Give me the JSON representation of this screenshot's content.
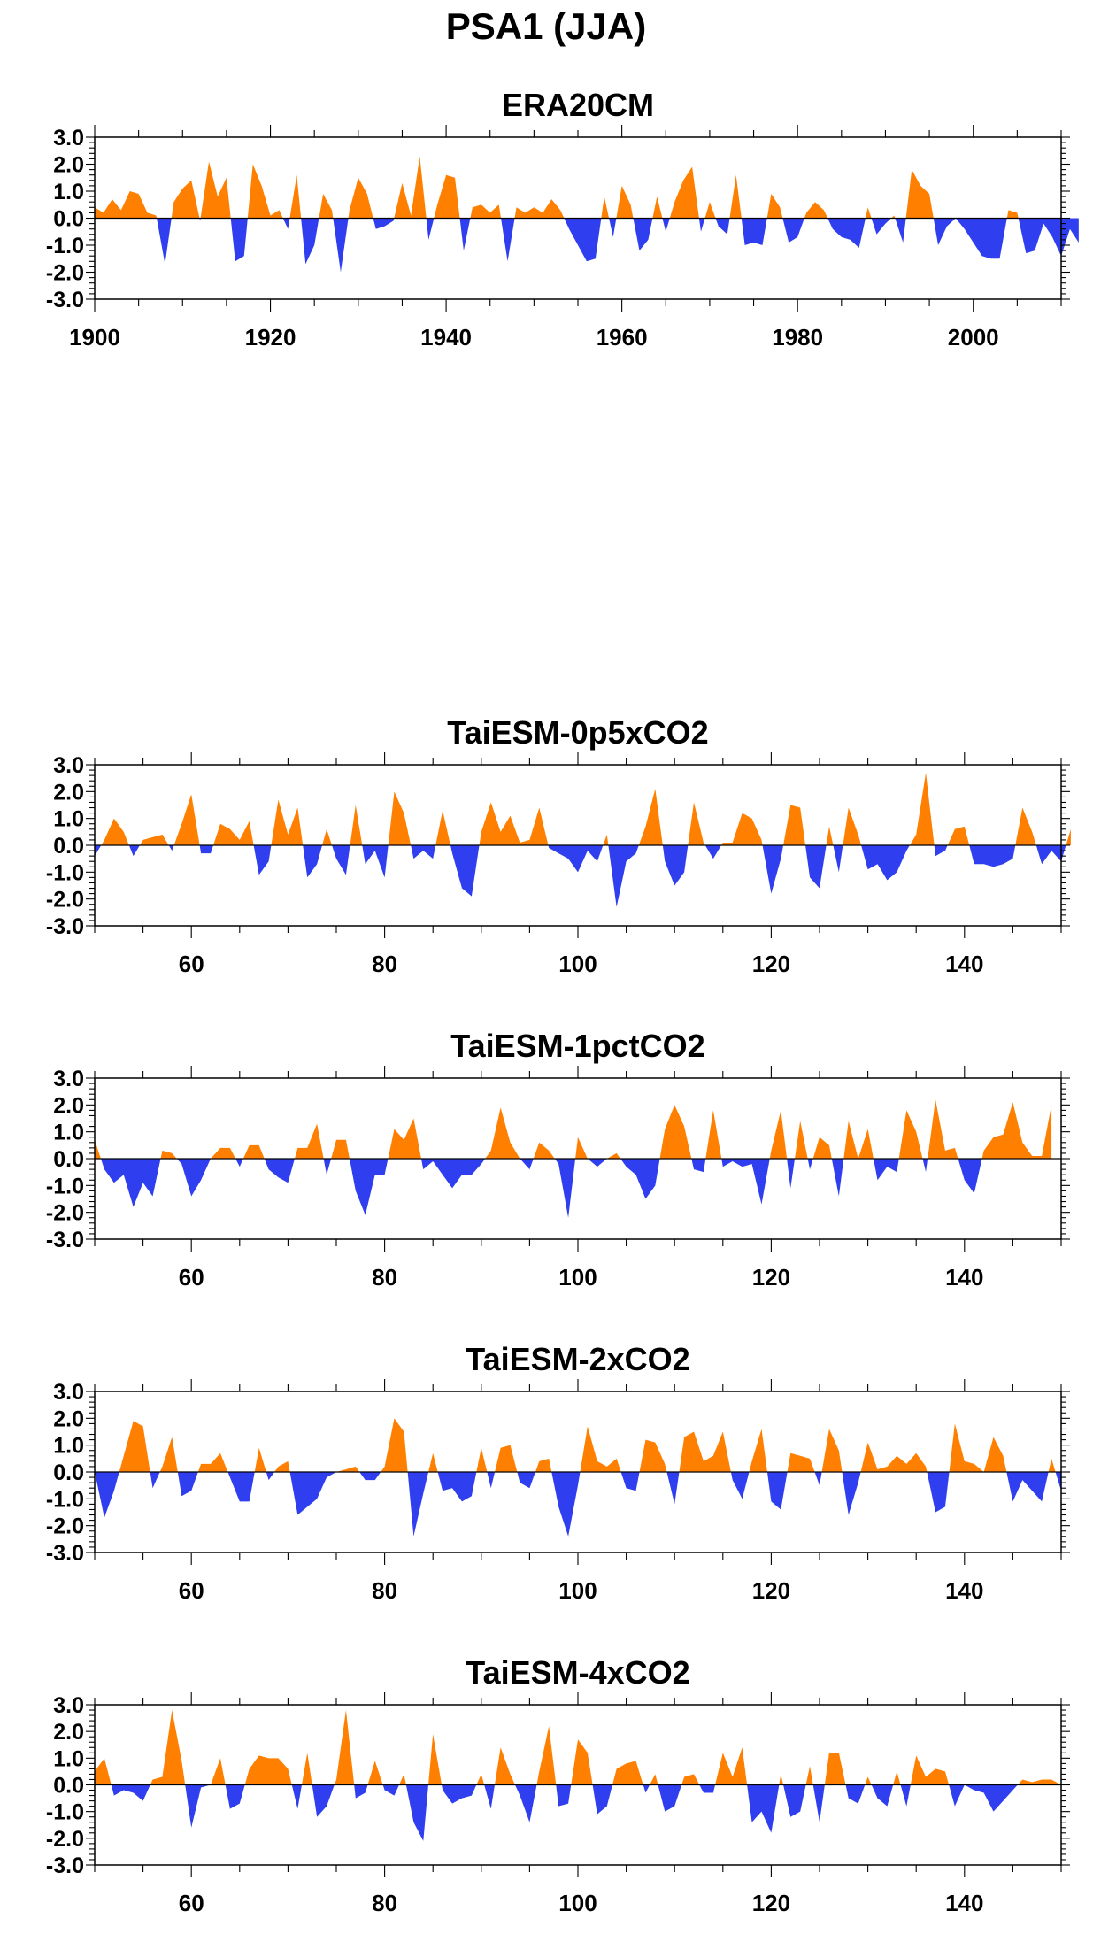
{
  "figure": {
    "title": "PSA1 (JJA)"
  },
  "colors": {
    "positive": "#ff8000",
    "negative": "#2f3ff0",
    "axis": "#000000"
  },
  "chart_data": [
    {
      "type": "area",
      "title": "ERA20CM",
      "xlabel": "",
      "ylabel": "",
      "xlim": [
        1900,
        2010
      ],
      "ylim": [
        -3,
        3
      ],
      "xticks": [
        1900,
        1920,
        1940,
        1960,
        1980,
        2000
      ],
      "yticks": [
        3,
        2,
        1,
        0,
        -1,
        -2,
        -3
      ],
      "ytick_labels": [
        "3.0",
        "2.0",
        "1.0",
        "0.0",
        "-1.0",
        "-2.0",
        "-3.0"
      ],
      "x_start": 1900,
      "values": [
        0.4,
        0.2,
        0.7,
        0.3,
        1.0,
        0.9,
        0.2,
        0.1,
        -1.7,
        0.6,
        1.1,
        1.4,
        -0.1,
        2.1,
        0.8,
        1.5,
        -1.6,
        -1.4,
        2.0,
        1.2,
        0.1,
        0.3,
        -0.4,
        1.6,
        -1.7,
        -1.0,
        0.9,
        0.3,
        -2.0,
        0.3,
        1.5,
        0.9,
        -0.4,
        -0.3,
        -0.1,
        1.3,
        0.1,
        2.3,
        -0.8,
        0.5,
        1.6,
        1.5,
        -1.2,
        0.4,
        0.5,
        0.2,
        0.5,
        -1.6,
        0.4,
        0.2,
        0.4,
        0.2,
        0.7,
        0.3,
        -0.4,
        -1.0,
        -1.6,
        -1.5,
        0.8,
        -0.7,
        1.2,
        0.5,
        -1.2,
        -0.8,
        0.8,
        -0.5,
        0.6,
        1.4,
        1.9,
        -0.5,
        0.6,
        -0.3,
        -0.6,
        1.6,
        -1.0,
        -0.9,
        -1.0,
        0.9,
        0.4,
        -0.9,
        -0.7,
        0.2,
        0.6,
        0.3,
        -0.4,
        -0.7,
        -0.8,
        -1.1,
        0.4,
        -0.6,
        -0.2,
        0.1,
        -0.9,
        1.8,
        1.2,
        0.9,
        -1.0,
        -0.3,
        0.0,
        -0.4,
        -0.9,
        -1.4,
        -1.5,
        -1.5,
        0.3,
        0.2,
        -1.3,
        -1.2,
        -0.2,
        -0.7,
        -1.4,
        -0.4,
        -0.9
      ]
    },
    {
      "type": "area",
      "title": "TaiESM-0p5xCO2",
      "xlabel": "",
      "ylabel": "",
      "xlim": [
        50,
        150
      ],
      "ylim": [
        -3,
        3
      ],
      "xticks": [
        60,
        80,
        100,
        120,
        140
      ],
      "yticks": [
        3,
        2,
        1,
        0,
        -1,
        -2,
        -3
      ],
      "ytick_labels": [
        "3.0",
        "2.0",
        "1.0",
        "0.0",
        "-1.0",
        "-2.0",
        "-3.0"
      ],
      "x_start": 50,
      "values": [
        -0.4,
        0.2,
        1.0,
        0.5,
        -0.4,
        0.2,
        0.3,
        0.4,
        -0.2,
        0.8,
        1.9,
        -0.3,
        -0.3,
        0.8,
        0.6,
        0.2,
        0.9,
        -1.1,
        -0.6,
        1.7,
        0.4,
        1.4,
        -1.2,
        -0.7,
        0.6,
        -0.5,
        -1.1,
        1.5,
        -0.7,
        -0.2,
        -1.2,
        2.0,
        1.2,
        -0.5,
        -0.2,
        -0.5,
        1.3,
        -0.3,
        -1.6,
        -1.9,
        0.5,
        1.6,
        0.5,
        1.1,
        0.1,
        0.2,
        1.4,
        -0.1,
        -0.3,
        -0.5,
        -1.0,
        -0.2,
        -0.6,
        0.4,
        -2.3,
        -0.6,
        -0.3,
        0.7,
        2.1,
        -0.6,
        -1.5,
        -1.0,
        1.6,
        0.1,
        -0.5,
        0.1,
        0.1,
        1.2,
        1.0,
        0.2,
        -1.8,
        -0.5,
        1.5,
        1.4,
        -1.2,
        -1.6,
        0.7,
        -1.0,
        1.4,
        0.4,
        -0.9,
        -0.7,
        -1.3,
        -1.0,
        -0.2,
        0.4,
        2.7,
        -0.4,
        -0.2,
        0.6,
        0.7,
        -0.7,
        -0.7,
        -0.8,
        -0.7,
        -0.5,
        1.4,
        0.5,
        -0.7,
        -0.2,
        -0.6,
        0.6
      ]
    },
    {
      "type": "area",
      "title": "TaiESM-1pctCO2",
      "xlabel": "",
      "ylabel": "",
      "xlim": [
        50,
        150
      ],
      "ylim": [
        -3,
        3
      ],
      "xticks": [
        60,
        80,
        100,
        120,
        140
      ],
      "yticks": [
        3,
        2,
        1,
        0,
        -1,
        -2,
        -3
      ],
      "ytick_labels": [
        "3.0",
        "2.0",
        "1.0",
        "0.0",
        "-1.0",
        "-2.0",
        "-3.0"
      ],
      "x_start": 50,
      "values": [
        0.7,
        -0.4,
        -0.9,
        -0.6,
        -1.8,
        -0.9,
        -1.4,
        0.3,
        0.2,
        -0.2,
        -1.4,
        -0.8,
        0.0,
        0.4,
        0.4,
        -0.3,
        0.5,
        0.5,
        -0.4,
        -0.7,
        -0.9,
        0.4,
        0.4,
        1.3,
        -0.6,
        0.7,
        0.7,
        -1.2,
        -2.1,
        -0.6,
        -0.6,
        1.1,
        0.7,
        1.5,
        -0.4,
        -0.1,
        -0.6,
        -1.1,
        -0.6,
        -0.6,
        -0.2,
        0.3,
        1.9,
        0.6,
        0.0,
        -0.4,
        0.6,
        0.3,
        -0.2,
        -2.2,
        0.8,
        0.0,
        -0.3,
        0.0,
        0.2,
        -0.3,
        -0.6,
        -1.5,
        -1.0,
        1.1,
        2.0,
        1.2,
        -0.4,
        -0.5,
        1.8,
        -0.3,
        -0.1,
        -0.3,
        -0.2,
        -1.7,
        0.3,
        1.8,
        -1.1,
        1.4,
        -0.4,
        0.8,
        0.5,
        -1.4,
        1.4,
        0.0,
        1.1,
        -0.8,
        -0.3,
        -0.5,
        1.8,
        1.0,
        -0.5,
        2.2,
        0.3,
        0.4,
        -0.8,
        -1.3,
        0.3,
        0.8,
        0.9,
        2.1,
        0.6,
        0.1,
        0.1,
        2.0
      ]
    },
    {
      "type": "area",
      "title": "TaiESM-2xCO2",
      "xlabel": "",
      "ylabel": "",
      "xlim": [
        50,
        150
      ],
      "ylim": [
        -3,
        3
      ],
      "xticks": [
        60,
        80,
        100,
        120,
        140
      ],
      "yticks": [
        3,
        2,
        1,
        0,
        -1,
        -2,
        -3
      ],
      "ytick_labels": [
        "3.0",
        "2.0",
        "1.0",
        "0.0",
        "-1.0",
        "-2.0",
        "-3.0"
      ],
      "x_start": 50,
      "values": [
        0.0,
        -1.7,
        -0.7,
        0.6,
        1.9,
        1.7,
        -0.6,
        0.2,
        1.3,
        -0.9,
        -0.7,
        0.3,
        0.3,
        0.7,
        -0.2,
        -1.1,
        -1.1,
        0.9,
        -0.3,
        0.2,
        0.4,
        -1.6,
        -1.3,
        -1.0,
        -0.2,
        0.0,
        0.1,
        0.2,
        -0.3,
        -0.3,
        0.2,
        2.0,
        1.5,
        -2.4,
        -0.8,
        0.7,
        -0.7,
        -0.6,
        -1.1,
        -0.9,
        0.9,
        -0.6,
        0.9,
        1.0,
        -0.4,
        -0.6,
        0.4,
        0.5,
        -1.3,
        -2.4,
        -0.5,
        1.7,
        0.4,
        0.2,
        0.5,
        -0.6,
        -0.7,
        1.2,
        1.1,
        0.3,
        -1.2,
        1.3,
        1.5,
        0.4,
        0.6,
        1.5,
        -0.3,
        -1.0,
        0.4,
        1.6,
        -1.1,
        -1.4,
        0.7,
        0.6,
        0.5,
        -0.5,
        1.6,
        0.8,
        -1.6,
        -0.4,
        1.1,
        0.1,
        0.2,
        0.6,
        0.3,
        0.7,
        0.2,
        -1.5,
        -1.3,
        1.8,
        0.4,
        0.3,
        0.0,
        1.3,
        0.6,
        -1.1,
        -0.3,
        -0.7,
        -1.1,
        0.5,
        -0.7
      ]
    },
    {
      "type": "area",
      "title": "TaiESM-4xCO2",
      "xlabel": "",
      "ylabel": "",
      "xlim": [
        50,
        150
      ],
      "ylim": [
        -3,
        3
      ],
      "xticks": [
        60,
        80,
        100,
        120,
        140
      ],
      "yticks": [
        3,
        2,
        1,
        0,
        -1,
        -2,
        -3
      ],
      "ytick_labels": [
        "3.0",
        "2.0",
        "1.0",
        "0.0",
        "-1.0",
        "-2.0",
        "-3.0"
      ],
      "x_start": 50,
      "values": [
        0.5,
        1.0,
        -0.4,
        -0.2,
        -0.3,
        -0.6,
        0.2,
        0.3,
        2.8,
        0.9,
        -1.6,
        -0.1,
        0.0,
        1.0,
        -0.9,
        -0.7,
        0.6,
        1.1,
        1.0,
        1.0,
        0.6,
        -0.9,
        1.2,
        -1.2,
        -0.8,
        0.2,
        2.8,
        -0.5,
        -0.3,
        0.9,
        -0.2,
        -0.4,
        0.4,
        -1.4,
        -2.1,
        1.9,
        -0.2,
        -0.7,
        -0.5,
        -0.4,
        0.4,
        -0.9,
        1.4,
        0.4,
        -0.4,
        -1.4,
        0.5,
        2.2,
        -0.8,
        -0.7,
        1.7,
        1.2,
        -1.1,
        -0.8,
        0.6,
        0.8,
        0.9,
        -0.3,
        0.4,
        -1.0,
        -0.8,
        0.3,
        0.4,
        -0.3,
        -0.3,
        1.2,
        0.3,
        1.4,
        -1.4,
        -1.0,
        -1.8,
        0.4,
        -1.2,
        -1.0,
        0.7,
        -1.4,
        1.2,
        1.2,
        -0.5,
        -0.7,
        0.3,
        -0.5,
        -0.8,
        0.5,
        -0.8,
        1.1,
        0.3,
        0.6,
        0.5,
        -0.8,
        0.0,
        -0.2,
        -0.3,
        -1.0,
        -0.6,
        -0.2,
        0.2,
        0.1,
        0.2,
        0.2,
        0.0
      ]
    }
  ]
}
